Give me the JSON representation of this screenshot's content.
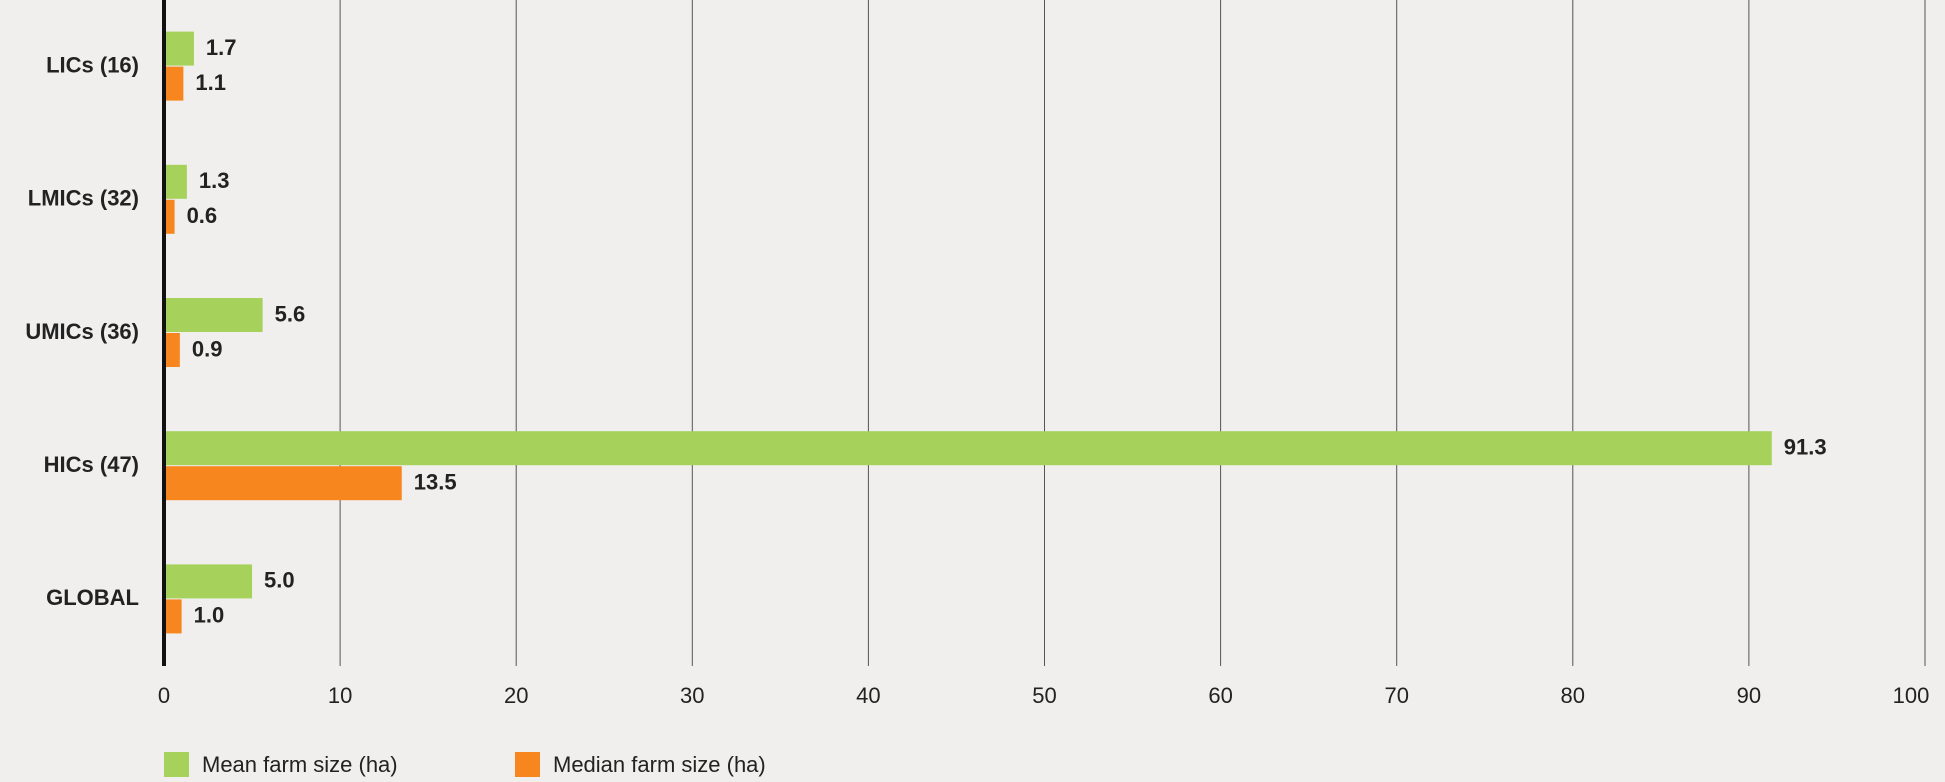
{
  "chart_data": {
    "type": "hbar",
    "categories": [
      "LICs (16)",
      "LMICs (32)",
      "UMICs (36)",
      "HICs (47)",
      "GLOBAL"
    ],
    "series": [
      {
        "name": "Mean farm size (ha)",
        "color": "#a6d15a",
        "values": [
          1.7,
          1.3,
          5.6,
          91.3,
          5.0
        ],
        "value_labels": [
          "1.7",
          "1.3",
          "5.6",
          "91.3",
          "5.0"
        ]
      },
      {
        "name": "Median farm size (ha)",
        "color": "#f7861e",
        "values": [
          1.1,
          0.6,
          0.9,
          13.5,
          1.0
        ],
        "value_labels": [
          "1.1",
          "0.6",
          "0.9",
          "13.5",
          "1.0"
        ]
      }
    ],
    "xlim": [
      0,
      100
    ],
    "xticks": [
      0,
      10,
      20,
      30,
      40,
      50,
      60,
      70,
      80,
      90,
      100
    ],
    "grid": true
  }
}
